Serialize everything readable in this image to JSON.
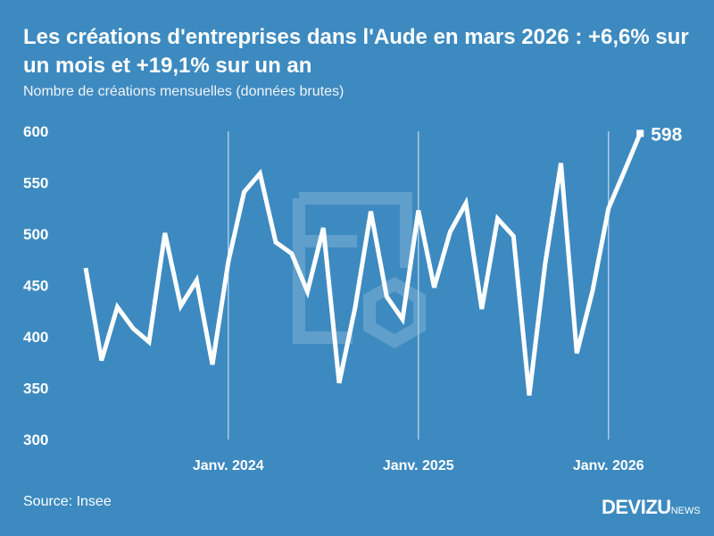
{
  "title": "Les créations d'entreprises dans l'Aude en mars 2026 : +6,6% sur un mois et +19,1% sur un an",
  "subtitle": "Nombre de créations mensuelles (données brutes)",
  "source": "Source: Insee",
  "logo": {
    "main": "DEVIZU",
    "suffix": "NEWS"
  },
  "colors": {
    "background": "#3d8ac0",
    "line": "#ffffff"
  },
  "chart_data": {
    "type": "line",
    "x_start": "2023-04",
    "x_end": "2026-03",
    "x": [
      "2023-04",
      "2023-05",
      "2023-06",
      "2023-07",
      "2023-08",
      "2023-09",
      "2023-10",
      "2023-11",
      "2023-12",
      "2024-01",
      "2024-02",
      "2024-03",
      "2024-04",
      "2024-05",
      "2024-06",
      "2024-07",
      "2024-08",
      "2024-09",
      "2024-10",
      "2024-11",
      "2024-12",
      "2025-01",
      "2025-02",
      "2025-03",
      "2025-04",
      "2025-05",
      "2025-06",
      "2025-07",
      "2025-08",
      "2025-09",
      "2025-10",
      "2025-11",
      "2025-12",
      "2026-01",
      "2026-02",
      "2026-03"
    ],
    "values": [
      467,
      377,
      429,
      408,
      395,
      501,
      430,
      455,
      373,
      473,
      541,
      559,
      492,
      481,
      444,
      506,
      355,
      428,
      522,
      439,
      417,
      523,
      448,
      502,
      530,
      427,
      515,
      498,
      343,
      471,
      569,
      384,
      445,
      525,
      561,
      598
    ],
    "ylim": [
      300,
      600
    ],
    "yticks": [
      "300",
      "350",
      "400",
      "450",
      "500",
      "550",
      "600"
    ],
    "xticks": [
      {
        "label": "Janv. 2024",
        "x": "2024-01"
      },
      {
        "label": "Janv. 2025",
        "x": "2025-01"
      },
      {
        "label": "Janv. 2026",
        "x": "2026-01"
      }
    ],
    "end_label": "598",
    "grid": "vertical lines at January"
  }
}
